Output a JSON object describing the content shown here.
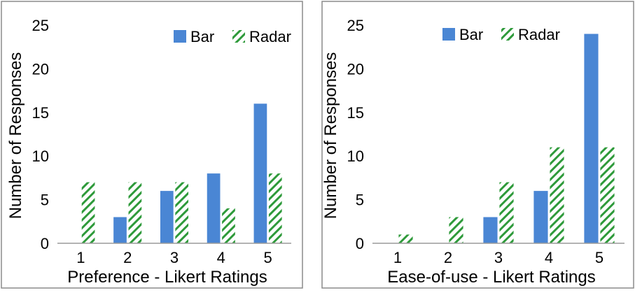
{
  "colors": {
    "bar": "#4a86d4",
    "radar": "#2e9a3a",
    "frame": "#8a8a8a",
    "axis": "#9a9a9a"
  },
  "chart_data": [
    {
      "type": "bar",
      "title": "",
      "xlabel": "Preference - Likert Ratings",
      "ylabel": "Number of Responses",
      "categories": [
        "1",
        "2",
        "3",
        "4",
        "5"
      ],
      "ylim": [
        0,
        25
      ],
      "yticks": [
        "0",
        "5",
        "10",
        "15",
        "20",
        "25"
      ],
      "grid": false,
      "legend_position": "top-right",
      "series": [
        {
          "name": "Bar",
          "pattern": "solid",
          "values": [
            0,
            3,
            6,
            8,
            16
          ]
        },
        {
          "name": "Radar",
          "pattern": "hatched",
          "values": [
            7,
            7,
            7,
            4,
            8
          ]
        }
      ]
    },
    {
      "type": "bar",
      "title": "",
      "xlabel": "Ease-of-use - Likert Ratings",
      "ylabel": "Number of Responses",
      "categories": [
        "1",
        "2",
        "3",
        "4",
        "5"
      ],
      "ylim": [
        0,
        25
      ],
      "yticks": [
        "0",
        "5",
        "10",
        "15",
        "20",
        "25"
      ],
      "grid": false,
      "legend_position": "top-right",
      "series": [
        {
          "name": "Bar",
          "pattern": "solid",
          "values": [
            0,
            0,
            3,
            6,
            24
          ]
        },
        {
          "name": "Radar",
          "pattern": "hatched",
          "values": [
            1,
            3,
            7,
            11,
            11
          ]
        }
      ]
    }
  ]
}
